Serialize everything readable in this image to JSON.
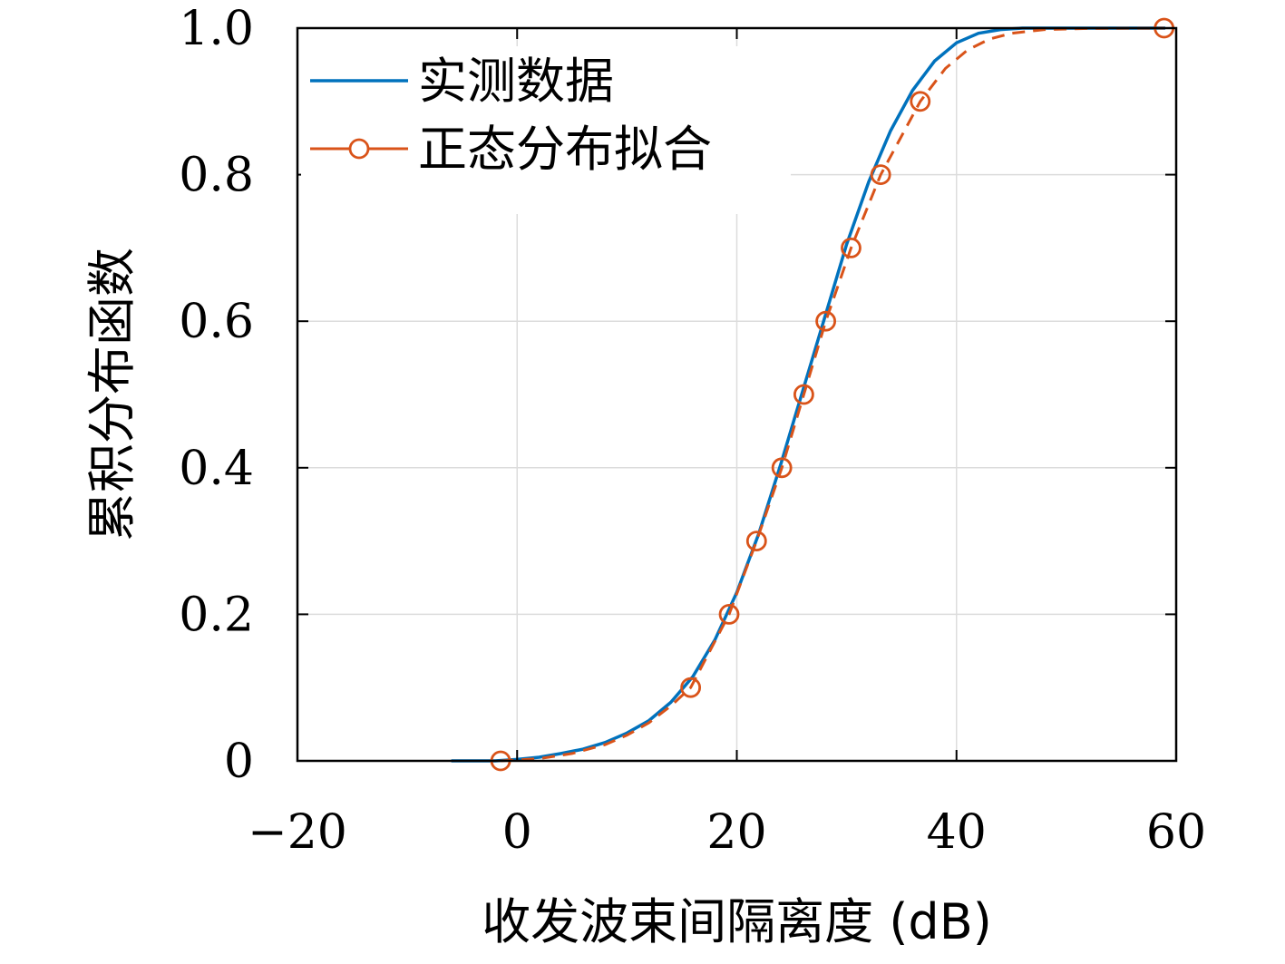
{
  "chart_data": {
    "type": "line",
    "xlabel": "收发波束间隔离度 (dB)",
    "ylabel": "累积分布函数",
    "xlim": [
      -20,
      60
    ],
    "ylim": [
      0,
      1
    ],
    "xticks": [
      -20,
      0,
      20,
      40,
      60
    ],
    "xtick_labels": [
      "−20",
      "0",
      "20",
      "40",
      "60"
    ],
    "yticks": [
      0,
      0.2,
      0.4,
      0.6,
      0.8,
      1.0
    ],
    "ytick_labels": [
      "0",
      "0.2",
      "0.4",
      "0.6",
      "0.8",
      "1.0"
    ],
    "grid": true,
    "legend_position": "top-left",
    "series": [
      {
        "name": "实测数据",
        "style": "solid",
        "color": "#0072BD",
        "x": [
          -6,
          -2,
          0,
          2,
          4,
          6,
          8,
          10,
          12,
          14,
          16,
          18,
          20,
          22,
          24,
          26,
          28,
          30,
          32,
          34,
          36,
          38,
          40,
          42,
          44,
          46,
          50,
          55,
          59
        ],
        "y": [
          0,
          0,
          0.002,
          0.005,
          0.01,
          0.016,
          0.025,
          0.038,
          0.055,
          0.08,
          0.115,
          0.165,
          0.23,
          0.31,
          0.405,
          0.505,
          0.605,
          0.705,
          0.79,
          0.86,
          0.915,
          0.955,
          0.98,
          0.993,
          0.998,
          1.0,
          1.0,
          1.0,
          1.0
        ]
      },
      {
        "name": "正态分布拟合",
        "style": "dashed-with-circles",
        "color": "#D95319",
        "x": [
          -1.5,
          15.8,
          19.3,
          21.8,
          24.1,
          26.1,
          28.1,
          30.4,
          33.1,
          36.7,
          58.9
        ],
        "y": [
          0,
          0.1,
          0.2,
          0.3,
          0.4,
          0.5,
          0.6,
          0.7,
          0.8,
          0.9,
          1.0
        ],
        "curve_x": [
          -1.5,
          2,
          5,
          8,
          10,
          12,
          14,
          15.8,
          19.3,
          21.8,
          24.1,
          26.1,
          28.1,
          30.4,
          33.1,
          36.7,
          39,
          41,
          43,
          45,
          48,
          52,
          58.9
        ],
        "curve_y": [
          0,
          0.003,
          0.01,
          0.022,
          0.035,
          0.052,
          0.075,
          0.1,
          0.2,
          0.3,
          0.4,
          0.5,
          0.6,
          0.7,
          0.8,
          0.9,
          0.945,
          0.97,
          0.985,
          0.993,
          0.998,
          0.9995,
          1.0
        ]
      }
    ]
  }
}
